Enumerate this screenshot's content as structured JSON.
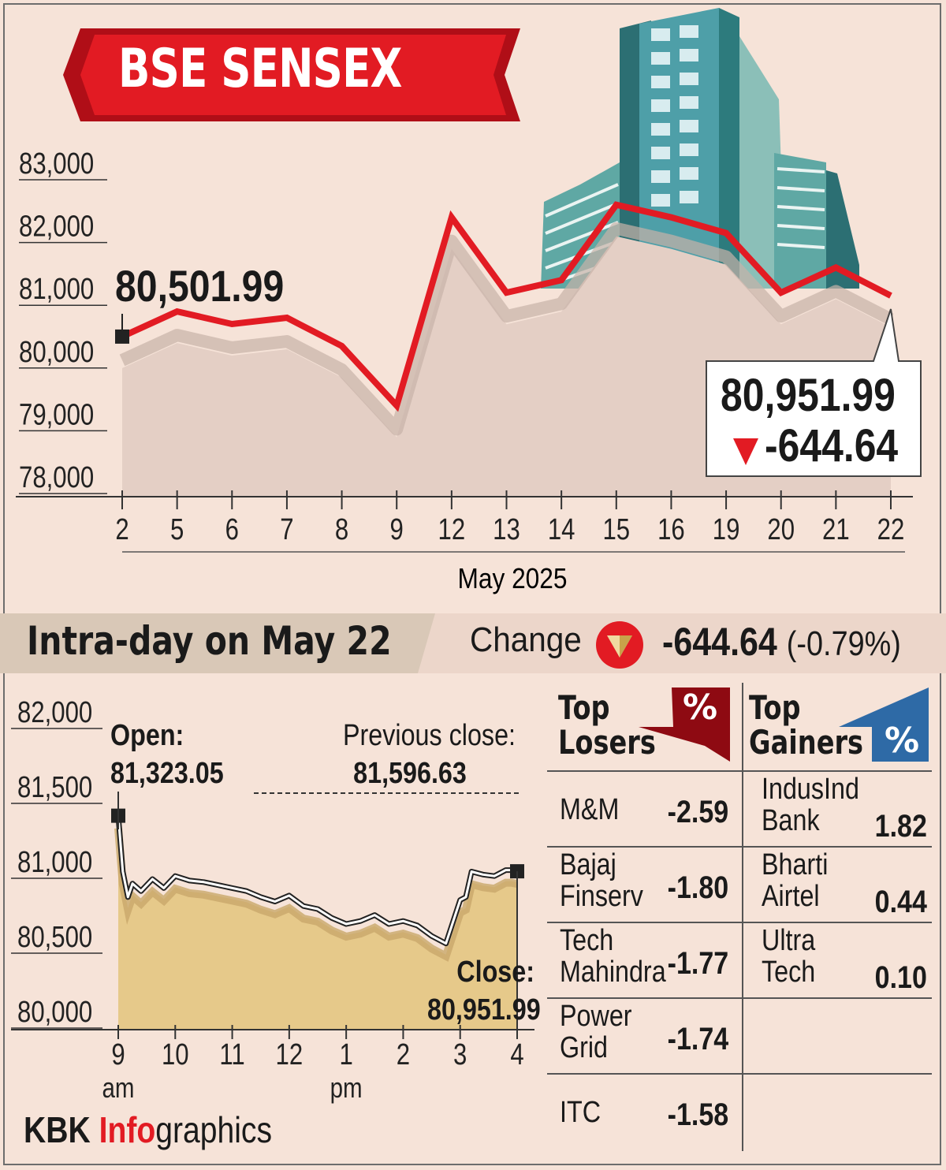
{
  "title": "BSE SENSEX",
  "monthly": {
    "start_value": "80,501.99",
    "close_value": "80,951.99",
    "close_change": "-644.64",
    "xlabel": "May 2025"
  },
  "intraday": {
    "heading": "Intra-day on May 22",
    "change_label": "Change",
    "change_value": "-644.64",
    "change_pct": "(-0.79%)",
    "open_label": "Open:",
    "open_value": "81,323.05",
    "prev_label": "Previous close:",
    "prev_value": "81,596.63",
    "close_label": "Close:",
    "close_value": "80,951.99"
  },
  "losers": {
    "title_1": "Top",
    "title_2": "Losers",
    "badge": "%",
    "rows": [
      {
        "name_1": "M&M",
        "name_2": "",
        "value": "-2.59"
      },
      {
        "name_1": "Bajaj",
        "name_2": "Finserv",
        "value": "-1.80"
      },
      {
        "name_1": "Tech",
        "name_2": "Mahindra",
        "value": "-1.77"
      },
      {
        "name_1": "Power",
        "name_2": "Grid",
        "value": "-1.74"
      },
      {
        "name_1": "ITC",
        "name_2": "",
        "value": "-1.58"
      }
    ]
  },
  "gainers": {
    "title_1": "Top",
    "title_2": "Gainers",
    "badge": "%",
    "rows": [
      {
        "name_1": "IndusInd",
        "name_2": "Bank",
        "value": "1.82"
      },
      {
        "name_1": "Bharti",
        "name_2": "Airtel",
        "value": "0.44"
      },
      {
        "name_1": "Ultra",
        "name_2": "Tech",
        "value": "0.10"
      }
    ]
  },
  "footer": {
    "part1": "KBK ",
    "part2": "Info",
    "part3": "graphics"
  },
  "colors": {
    "red": "#e21b23",
    "dark_red": "#8e0a12",
    "blue": "#2e6aa6",
    "area_gold": "#e6c98a",
    "bg": "#f6e3d8"
  },
  "chart_data": [
    {
      "type": "line",
      "title": "BSE SENSEX",
      "xlabel": "May 2025",
      "ylabel": "",
      "categories": [
        "2",
        "5",
        "6",
        "7",
        "8",
        "9",
        "12",
        "13",
        "14",
        "15",
        "16",
        "19",
        "20",
        "21",
        "22"
      ],
      "values": [
        80300,
        80700,
        80500,
        80600,
        80150,
        79200,
        82200,
        81000,
        81200,
        82400,
        82200,
        81950,
        81000,
        81400,
        80951.99
      ],
      "ylim": [
        78000,
        83000
      ],
      "yticks": [
        "78,000",
        "79,000",
        "80,000",
        "81,000",
        "82,000",
        "83,000"
      ],
      "grid": false
    },
    {
      "type": "area",
      "title": "Intra-day on May 22",
      "xlabel": "",
      "ylabel": "",
      "x_ticks": [
        "9",
        "10",
        "11",
        "12",
        "1",
        "2",
        "3",
        "4"
      ],
      "x_tick_sub": {
        "9": "am",
        "1": "pm"
      },
      "x": [
        9.0,
        9.08,
        9.17,
        9.25,
        9.4,
        9.6,
        9.8,
        10.0,
        10.25,
        10.5,
        10.75,
        11.0,
        11.25,
        11.5,
        11.75,
        12.0,
        12.25,
        12.5,
        12.75,
        13.0,
        13.25,
        13.5,
        13.75,
        14.0,
        14.25,
        14.5,
        14.75,
        15.0,
        15.1,
        15.2,
        15.4,
        15.6,
        15.8,
        15.9,
        16.0
      ],
      "y": [
        81323.05,
        80950,
        80780,
        80870,
        80820,
        80900,
        80840,
        80920,
        80890,
        80880,
        80860,
        80840,
        80820,
        80780,
        80750,
        80790,
        80720,
        80700,
        80640,
        80600,
        80620,
        80660,
        80600,
        80620,
        80590,
        80520,
        80470,
        80760,
        80780,
        80950,
        80930,
        80920,
        80960,
        80960,
        80951.99
      ],
      "ylim": [
        80000,
        82000
      ],
      "yticks": [
        "80,000",
        "80,500",
        "81,000",
        "81,500",
        "82,000"
      ],
      "reference_line": 81596.63,
      "grid": false
    }
  ]
}
